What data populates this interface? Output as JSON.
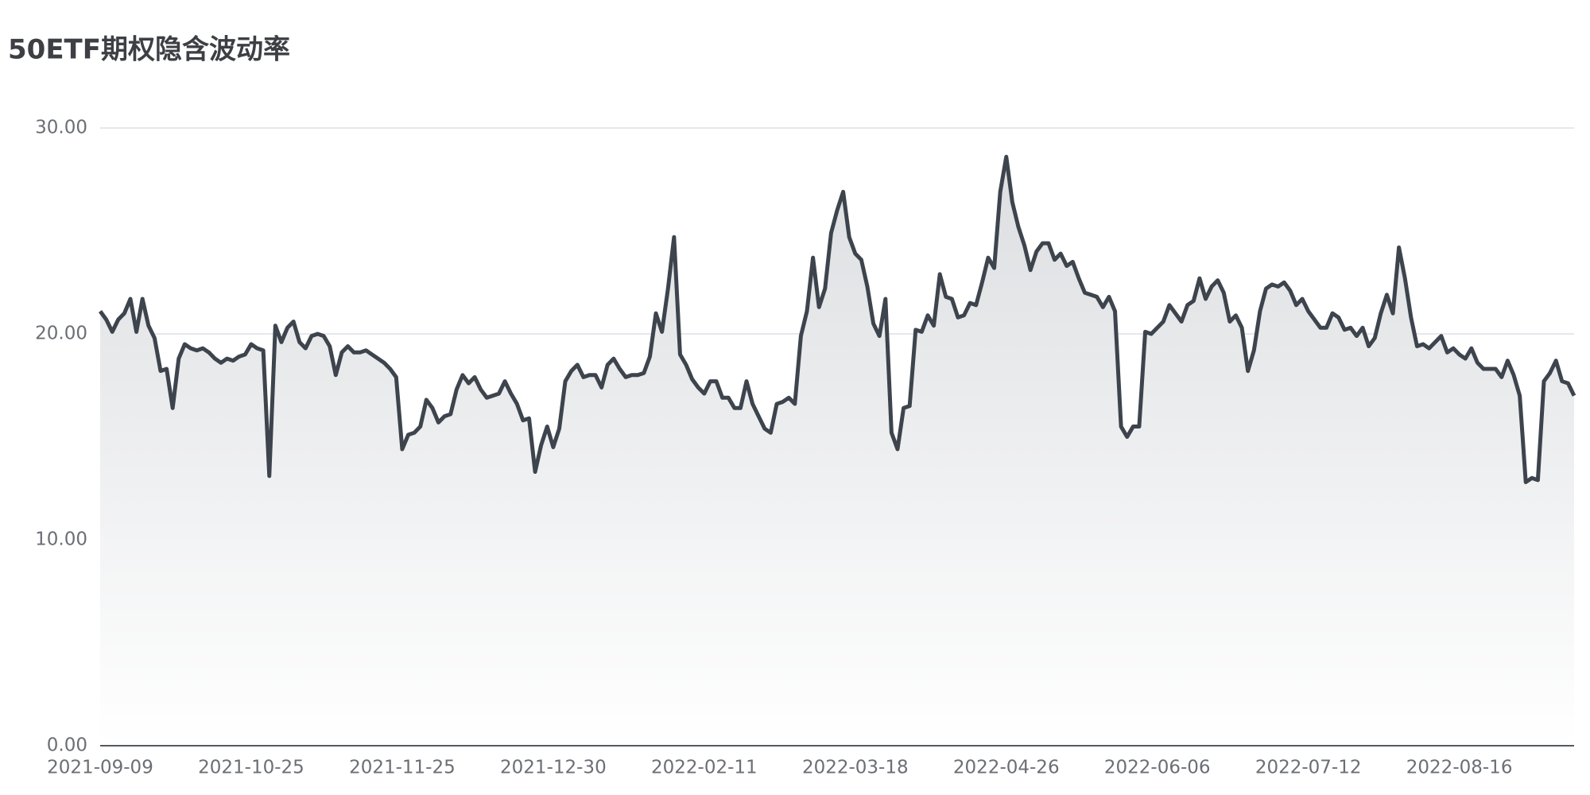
{
  "chart_data": {
    "type": "line",
    "title": "50ETF期权隐含波动率",
    "color": "#3d444d",
    "area": true,
    "grid": true,
    "ylim": [
      0,
      30
    ],
    "yticks": [
      {
        "value": 0,
        "label": "0.00"
      },
      {
        "value": 10,
        "label": "10.00"
      },
      {
        "value": 20,
        "label": "20.00"
      },
      {
        "value": 30,
        "label": "30.00"
      }
    ],
    "categories": [
      "2021-09-09",
      null,
      null,
      null,
      null,
      null,
      null,
      null,
      null,
      null,
      null,
      null,
      null,
      null,
      null,
      null,
      null,
      null,
      null,
      null,
      null,
      null,
      null,
      null,
      null,
      "2021-10-25",
      null,
      null,
      null,
      null,
      null,
      null,
      null,
      null,
      null,
      null,
      null,
      null,
      null,
      null,
      null,
      null,
      null,
      null,
      null,
      null,
      null,
      null,
      null,
      null,
      "2021-11-25",
      null,
      null,
      null,
      null,
      null,
      null,
      null,
      null,
      null,
      null,
      null,
      null,
      null,
      null,
      null,
      null,
      null,
      null,
      null,
      null,
      null,
      null,
      null,
      null,
      "2021-12-30",
      null,
      null,
      null,
      null,
      null,
      null,
      null,
      null,
      null,
      null,
      null,
      null,
      null,
      null,
      null,
      null,
      null,
      null,
      null,
      null,
      null,
      null,
      null,
      null,
      "2022-02-11",
      null,
      null,
      null,
      null,
      null,
      null,
      null,
      null,
      null,
      null,
      null,
      null,
      null,
      null,
      null,
      null,
      null,
      null,
      null,
      null,
      null,
      null,
      null,
      null,
      "2022-03-18",
      null,
      null,
      null,
      null,
      null,
      null,
      null,
      null,
      null,
      null,
      null,
      null,
      null,
      null,
      null,
      null,
      null,
      null,
      null,
      null,
      null,
      null,
      null,
      null,
      "2022-04-26",
      null,
      null,
      null,
      null,
      null,
      null,
      null,
      null,
      null,
      null,
      null,
      null,
      null,
      null,
      null,
      null,
      null,
      null,
      null,
      null,
      null,
      null,
      null,
      null,
      "2022-06-06",
      null,
      null,
      null,
      null,
      null,
      null,
      null,
      null,
      null,
      null,
      null,
      null,
      null,
      null,
      null,
      null,
      null,
      null,
      null,
      null,
      null,
      null,
      null,
      null,
      "2022-07-12",
      null,
      null,
      null,
      null,
      null,
      null,
      null,
      null,
      null,
      null,
      null,
      null,
      null,
      null,
      null,
      null,
      null,
      null,
      null,
      null,
      null,
      null,
      null,
      null,
      "2022-08-16",
      null,
      null,
      null,
      null,
      null,
      null,
      null,
      null,
      null,
      null,
      null,
      null,
      null,
      null,
      null,
      null,
      null,
      null,
      null
    ],
    "values": [
      21.1,
      20.7,
      20.1,
      20.7,
      21.0,
      21.7,
      20.1,
      21.7,
      20.4,
      19.8,
      18.2,
      18.3,
      16.4,
      18.8,
      19.5,
      19.3,
      19.2,
      19.3,
      19.1,
      18.8,
      18.6,
      18.8,
      18.7,
      18.9,
      19.0,
      19.5,
      19.3,
      19.2,
      13.1,
      20.4,
      19.6,
      20.3,
      20.6,
      19.6,
      19.3,
      19.9,
      20.0,
      19.9,
      19.4,
      18.0,
      19.1,
      19.4,
      19.1,
      19.1,
      19.2,
      19.0,
      18.8,
      18.6,
      18.3,
      17.9,
      14.4,
      15.1,
      15.2,
      15.5,
      16.8,
      16.4,
      15.7,
      16.0,
      16.1,
      17.3,
      18.0,
      17.6,
      17.9,
      17.3,
      16.9,
      17.0,
      17.1,
      17.7,
      17.1,
      16.6,
      15.8,
      15.9,
      13.3,
      14.6,
      15.5,
      14.5,
      15.4,
      17.7,
      18.2,
      18.5,
      17.9,
      18.0,
      18.0,
      17.4,
      18.5,
      18.8,
      18.3,
      17.9,
      18.0,
      18.0,
      18.1,
      18.9,
      21.0,
      20.1,
      22.2,
      24.7,
      19.0,
      18.5,
      17.8,
      17.4,
      17.1,
      17.7,
      17.7,
      16.9,
      16.9,
      16.4,
      16.4,
      17.7,
      16.6,
      16.0,
      15.4,
      15.2,
      16.6,
      16.7,
      16.9,
      16.6,
      19.9,
      21.1,
      23.7,
      21.3,
      22.2,
      24.9,
      26.0,
      26.9,
      24.7,
      23.9,
      23.6,
      22.3,
      20.5,
      19.9,
      21.7,
      15.2,
      14.4,
      16.4,
      16.5,
      20.2,
      20.1,
      20.9,
      20.4,
      22.9,
      21.8,
      21.7,
      20.8,
      20.9,
      21.5,
      21.4,
      22.5,
      23.7,
      23.2,
      26.9,
      28.6,
      26.4,
      25.2,
      24.3,
      23.1,
      24.0,
      24.4,
      24.4,
      23.6,
      23.9,
      23.3,
      23.5,
      22.7,
      22.0,
      21.9,
      21.8,
      21.3,
      21.8,
      21.1,
      15.5,
      15.0,
      15.5,
      15.5,
      20.1,
      20.0,
      20.3,
      20.6,
      21.4,
      21.0,
      20.6,
      21.4,
      21.6,
      22.7,
      21.7,
      22.3,
      22.6,
      22.0,
      20.6,
      20.9,
      20.3,
      18.2,
      19.2,
      21.1,
      22.2,
      22.4,
      22.3,
      22.5,
      22.1,
      21.4,
      21.7,
      21.1,
      20.7,
      20.3,
      20.3,
      21.0,
      20.8,
      20.2,
      20.3,
      19.9,
      20.3,
      19.4,
      19.8,
      21.0,
      21.9,
      21.0,
      24.2,
      22.7,
      20.8,
      19.4,
      19.5,
      19.3,
      19.6,
      19.9,
      19.1,
      19.3,
      19.0,
      18.8,
      19.3,
      18.6,
      18.3,
      18.3,
      18.3,
      17.9,
      18.7,
      18.0,
      17.0,
      12.8,
      13.0,
      12.9,
      17.7,
      18.1,
      18.7,
      17.7,
      17.6,
      17.0
    ]
  }
}
